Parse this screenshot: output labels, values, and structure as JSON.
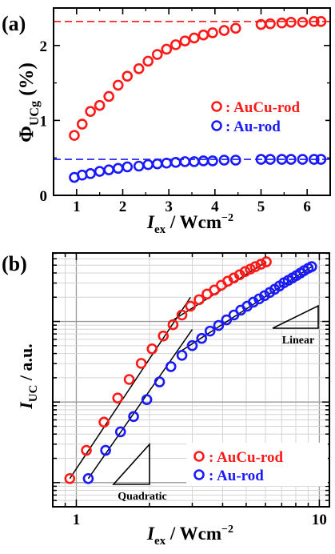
{
  "colors": {
    "aucu": "#ff1a1a",
    "au": "#1a1aff",
    "axis": "#000000",
    "grid": "#bdbdbd",
    "fit": "#000000"
  },
  "chart_data": [
    {
      "id": "a",
      "type": "scatter",
      "panel_label": "(a)",
      "ylabel_main": "Φ",
      "ylabel_sub": "UCg",
      "ylabel_tail": " (%)",
      "xlabel_main": "I",
      "xlabel_sub": "ex",
      "xlabel_tail": " / Wcm",
      "xlabel_sup": "−2",
      "xlim": [
        0.5,
        6.5
      ],
      "ylim": [
        0,
        2.5
      ],
      "xticks": [
        1,
        2,
        3,
        4,
        5,
        6
      ],
      "xtick_labels": [
        "1",
        "2",
        "3",
        "4",
        "5",
        "6"
      ],
      "yticks": [
        0,
        1,
        2
      ],
      "ytick_labels": [
        "0",
        "1",
        "2"
      ],
      "xminor": [
        1.5,
        2.5,
        3.5,
        4.5,
        5.5
      ],
      "yminor": [
        0.5,
        1.5
      ],
      "legend_position": "right",
      "series": [
        {
          "name": "AuCu-rod",
          "legend_label": ": AuCu-rod",
          "color": "#ff1a1a",
          "x": [
            0.95,
            1.12,
            1.3,
            1.5,
            1.7,
            1.9,
            2.1,
            2.35,
            2.55,
            2.75,
            2.95,
            3.15,
            3.35,
            3.55,
            3.75,
            3.95,
            4.2,
            4.45,
            5.0,
            5.2,
            5.45,
            5.65,
            5.9,
            6.15,
            6.3
          ],
          "y": [
            0.8,
            0.95,
            1.12,
            1.2,
            1.32,
            1.47,
            1.59,
            1.69,
            1.79,
            1.88,
            1.95,
            2.01,
            2.06,
            2.1,
            2.14,
            2.17,
            2.2,
            2.23,
            2.28,
            2.29,
            2.3,
            2.31,
            2.31,
            2.32,
            2.32
          ]
        },
        {
          "name": "Au-rod",
          "legend_label": ": Au-rod",
          "color": "#1a1aff",
          "x": [
            0.95,
            1.12,
            1.3,
            1.5,
            1.7,
            1.9,
            2.1,
            2.35,
            2.55,
            2.75,
            2.95,
            3.15,
            3.35,
            3.55,
            3.75,
            3.95,
            4.2,
            4.45,
            5.0,
            5.2,
            5.45,
            5.65,
            5.9,
            6.15,
            6.3
          ],
          "y": [
            0.24,
            0.27,
            0.29,
            0.32,
            0.34,
            0.36,
            0.38,
            0.39,
            0.41,
            0.42,
            0.43,
            0.44,
            0.45,
            0.45,
            0.46,
            0.46,
            0.47,
            0.47,
            0.48,
            0.48,
            0.48,
            0.48,
            0.48,
            0.48,
            0.48
          ]
        }
      ],
      "reference_lines": [
        {
          "y": 2.32,
          "color": "#ff1a1a",
          "style": "dashed"
        },
        {
          "y": 0.48,
          "color": "#1a1aff",
          "style": "dashed"
        }
      ]
    },
    {
      "id": "b",
      "type": "scatter",
      "panel_label": "(b)",
      "ylabel_main": "I",
      "ylabel_sub": "UC",
      "ylabel_tail": " / a.u.",
      "xlabel_main": "I",
      "xlabel_sub": "ex",
      "xlabel_tail": " / Wcm",
      "xlabel_sup": "−2",
      "xscale": "log",
      "yscale": "log",
      "xlim": [
        0.8,
        11
      ],
      "ylim_decades": [
        -2.3,
        0.85
      ],
      "xticks": [
        1,
        10
      ],
      "xtick_labels": [
        "1",
        "10"
      ],
      "grid": true,
      "legend_position": "bottom-right",
      "series": [
        {
          "name": "AuCu-rod",
          "legend_label": ": AuCu-rod",
          "color": "#ff1a1a",
          "x": [
            0.94,
            1.1,
            1.3,
            1.48,
            1.65,
            1.85,
            2.05,
            2.28,
            2.5,
            2.72,
            2.95,
            3.2,
            3.45,
            3.7,
            3.95,
            4.2,
            4.45,
            4.7,
            4.95,
            5.2,
            5.45,
            5.75,
            6.05
          ],
          "y_log": [
            -1.95,
            -1.6,
            -1.25,
            -0.95,
            -0.72,
            -0.52,
            -0.34,
            -0.18,
            -0.04,
            0.08,
            0.19,
            0.27,
            0.34,
            0.39,
            0.45,
            0.5,
            0.54,
            0.58,
            0.62,
            0.65,
            0.68,
            0.71,
            0.74
          ]
        },
        {
          "name": "Au-rod",
          "legend_label": ": Au-rod",
          "color": "#1a1aff",
          "x": [
            1.12,
            1.32,
            1.52,
            1.72,
            1.95,
            2.2,
            2.45,
            2.72,
            3.0,
            3.28,
            3.55,
            3.85,
            4.15,
            4.45,
            4.75,
            5.05,
            5.35,
            5.65,
            5.95,
            6.25,
            6.55,
            6.85,
            7.15,
            7.45,
            7.75,
            8.05,
            8.35,
            8.65,
            9.0,
            9.3
          ],
          "y_log": [
            -1.95,
            -1.6,
            -1.37,
            -1.18,
            -0.97,
            -0.75,
            -0.56,
            -0.42,
            -0.3,
            -0.21,
            -0.12,
            -0.05,
            0.02,
            0.08,
            0.14,
            0.19,
            0.24,
            0.28,
            0.32,
            0.36,
            0.4,
            0.44,
            0.48,
            0.51,
            0.54,
            0.57,
            0.6,
            0.63,
            0.66,
            0.68
          ]
        }
      ],
      "fit_lines": [
        {
          "x": [
            0.94,
            2.95
          ],
          "y_log": [
            -1.95,
            0.3
          ]
        },
        {
          "x": [
            2.45,
            6.05
          ],
          "y_log": [
            0.0,
            0.74
          ]
        },
        {
          "x": [
            1.12,
            3.0
          ],
          "y_log": [
            -1.95,
            -0.1
          ]
        },
        {
          "x": [
            2.72,
            9.3
          ],
          "y_log": [
            -0.36,
            0.68
          ]
        }
      ],
      "slope_guides": [
        {
          "label": "Quadratic",
          "kind": "quadratic"
        },
        {
          "label": "Linear",
          "kind": "linear"
        }
      ]
    }
  ]
}
